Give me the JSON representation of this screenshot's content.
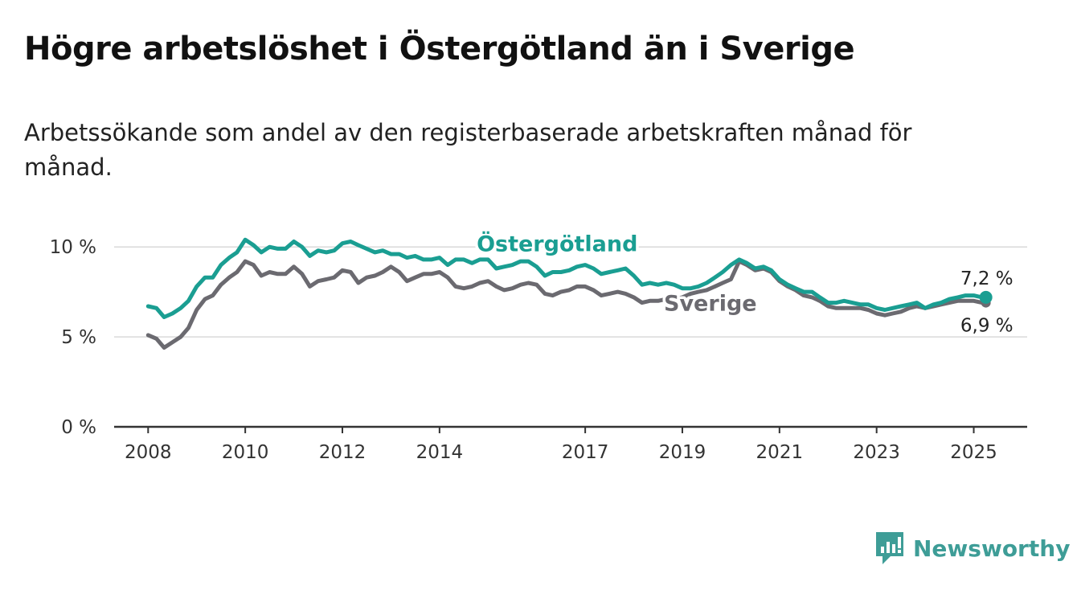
{
  "title": "Högre arbetslöshet i Östergötland än i Sverige",
  "subtitle": "Arbetssökande som andel av den registerbaserade arbetskraften månad för månad.",
  "brand": {
    "name": "Newsworthy",
    "icon": "newsworthy-logo-icon",
    "color": "#3e9d97"
  },
  "chart_data": {
    "type": "line",
    "title": "Högre arbetslöshet i Östergötland än i Sverige",
    "subtitle": "Arbetssökande som andel av den registerbaserade arbetskraften månad för månad.",
    "xlabel": "",
    "ylabel": "",
    "x_range": [
      2007.3,
      2026.1
    ],
    "ylim": [
      0,
      10.5
    ],
    "y_ticks": [
      {
        "value": 0,
        "label": "0 %"
      },
      {
        "value": 5,
        "label": "5 %"
      },
      {
        "value": 10,
        "label": "10 %"
      }
    ],
    "x_ticks": [
      {
        "value": 2008,
        "label": "2008"
      },
      {
        "value": 2010,
        "label": "2010"
      },
      {
        "value": 2012,
        "label": "2012"
      },
      {
        "value": 2014,
        "label": "2014"
      },
      {
        "value": 2017,
        "label": "2017"
      },
      {
        "value": 2019,
        "label": "2019"
      },
      {
        "value": 2021,
        "label": "2021"
      },
      {
        "value": 2023,
        "label": "2023"
      },
      {
        "value": 2025,
        "label": "2025"
      }
    ],
    "grid": true,
    "legend": "inline labels",
    "series": [
      {
        "name": "Östergötland",
        "color": "#1a9e92",
        "end_label": "7,2 %",
        "x": [
          2008.0,
          2008.17,
          2008.33,
          2008.5,
          2008.67,
          2008.83,
          2009.0,
          2009.17,
          2009.33,
          2009.5,
          2009.67,
          2009.83,
          2010.0,
          2010.17,
          2010.33,
          2010.5,
          2010.67,
          2010.83,
          2011.0,
          2011.17,
          2011.33,
          2011.5,
          2011.67,
          2011.83,
          2012.0,
          2012.17,
          2012.33,
          2012.5,
          2012.67,
          2012.83,
          2013.0,
          2013.17,
          2013.33,
          2013.5,
          2013.67,
          2013.83,
          2014.0,
          2014.17,
          2014.33,
          2014.5,
          2014.67,
          2014.83,
          2015.0,
          2015.17,
          2015.33,
          2015.5,
          2015.67,
          2015.83,
          2016.0,
          2016.17,
          2016.33,
          2016.5,
          2016.67,
          2016.83,
          2017.0,
          2017.17,
          2017.33,
          2017.5,
          2017.67,
          2017.83,
          2018.0,
          2018.17,
          2018.33,
          2018.5,
          2018.67,
          2018.83,
          2019.0,
          2019.17,
          2019.33,
          2019.5,
          2019.67,
          2019.83,
          2020.0,
          2020.17,
          2020.33,
          2020.5,
          2020.67,
          2020.83,
          2021.0,
          2021.17,
          2021.33,
          2021.5,
          2021.67,
          2021.83,
          2022.0,
          2022.17,
          2022.33,
          2022.5,
          2022.67,
          2022.83,
          2023.0,
          2023.17,
          2023.33,
          2023.5,
          2023.67,
          2023.83,
          2024.0,
          2024.17,
          2024.33,
          2024.5,
          2024.67,
          2024.83,
          2025.0,
          2025.17,
          2025.25
        ],
        "values": [
          6.7,
          6.6,
          6.1,
          6.3,
          6.6,
          7.0,
          7.8,
          8.3,
          8.3,
          9.0,
          9.4,
          9.7,
          10.4,
          10.1,
          9.7,
          10.0,
          9.9,
          9.9,
          10.3,
          10.0,
          9.5,
          9.8,
          9.7,
          9.8,
          10.2,
          10.3,
          10.1,
          9.9,
          9.7,
          9.8,
          9.6,
          9.6,
          9.4,
          9.5,
          9.3,
          9.3,
          9.4,
          9.0,
          9.3,
          9.3,
          9.1,
          9.3,
          9.3,
          8.8,
          8.9,
          9.0,
          9.2,
          9.2,
          8.9,
          8.4,
          8.6,
          8.6,
          8.7,
          8.9,
          9.0,
          8.8,
          8.5,
          8.6,
          8.7,
          8.8,
          8.4,
          7.9,
          8.0,
          7.9,
          8.0,
          7.9,
          7.7,
          7.7,
          7.8,
          8.0,
          8.3,
          8.6,
          9.0,
          9.3,
          9.1,
          8.8,
          8.9,
          8.7,
          8.2,
          7.9,
          7.7,
          7.5,
          7.5,
          7.2,
          6.9,
          6.9,
          7.0,
          6.9,
          6.8,
          6.8,
          6.6,
          6.5,
          6.6,
          6.7,
          6.8,
          6.9,
          6.6,
          6.8,
          6.9,
          7.1,
          7.2,
          7.3,
          7.3,
          7.2,
          7.2
        ]
      },
      {
        "name": "Sverige",
        "color": "#6b6a70",
        "end_label": "6,9 %",
        "x": [
          2008.0,
          2008.17,
          2008.33,
          2008.5,
          2008.67,
          2008.83,
          2009.0,
          2009.17,
          2009.33,
          2009.5,
          2009.67,
          2009.83,
          2010.0,
          2010.17,
          2010.33,
          2010.5,
          2010.67,
          2010.83,
          2011.0,
          2011.17,
          2011.33,
          2011.5,
          2011.67,
          2011.83,
          2012.0,
          2012.17,
          2012.33,
          2012.5,
          2012.67,
          2012.83,
          2013.0,
          2013.17,
          2013.33,
          2013.5,
          2013.67,
          2013.83,
          2014.0,
          2014.17,
          2014.33,
          2014.5,
          2014.67,
          2014.83,
          2015.0,
          2015.17,
          2015.33,
          2015.5,
          2015.67,
          2015.83,
          2016.0,
          2016.17,
          2016.33,
          2016.5,
          2016.67,
          2016.83,
          2017.0,
          2017.17,
          2017.33,
          2017.5,
          2017.67,
          2017.83,
          2018.0,
          2018.17,
          2018.33,
          2018.5,
          2018.67,
          2018.83,
          2019.0,
          2019.17,
          2019.33,
          2019.5,
          2019.67,
          2019.83,
          2020.0,
          2020.17,
          2020.33,
          2020.5,
          2020.67,
          2020.83,
          2021.0,
          2021.17,
          2021.33,
          2021.5,
          2021.67,
          2021.83,
          2022.0,
          2022.17,
          2022.33,
          2022.5,
          2022.67,
          2022.83,
          2023.0,
          2023.17,
          2023.33,
          2023.5,
          2023.67,
          2023.83,
          2024.0,
          2024.17,
          2024.33,
          2024.5,
          2024.67,
          2024.83,
          2025.0,
          2025.17,
          2025.25
        ],
        "values": [
          5.1,
          4.9,
          4.4,
          4.7,
          5.0,
          5.5,
          6.5,
          7.1,
          7.3,
          7.9,
          8.3,
          8.6,
          9.2,
          9.0,
          8.4,
          8.6,
          8.5,
          8.5,
          8.9,
          8.5,
          7.8,
          8.1,
          8.2,
          8.3,
          8.7,
          8.6,
          8.0,
          8.3,
          8.4,
          8.6,
          8.9,
          8.6,
          8.1,
          8.3,
          8.5,
          8.5,
          8.6,
          8.3,
          7.8,
          7.7,
          7.8,
          8.0,
          8.1,
          7.8,
          7.6,
          7.7,
          7.9,
          8.0,
          7.9,
          7.4,
          7.3,
          7.5,
          7.6,
          7.8,
          7.8,
          7.6,
          7.3,
          7.4,
          7.5,
          7.4,
          7.2,
          6.9,
          7.0,
          7.0,
          7.1,
          7.1,
          7.2,
          7.4,
          7.5,
          7.6,
          7.8,
          8.0,
          8.2,
          9.2,
          9.0,
          8.7,
          8.8,
          8.6,
          8.1,
          7.8,
          7.6,
          7.3,
          7.2,
          7.0,
          6.7,
          6.6,
          6.6,
          6.6,
          6.6,
          6.5,
          6.3,
          6.2,
          6.3,
          6.4,
          6.6,
          6.7,
          6.6,
          6.7,
          6.8,
          6.9,
          7.0,
          7.0,
          7.0,
          6.9,
          6.9
        ]
      }
    ]
  }
}
